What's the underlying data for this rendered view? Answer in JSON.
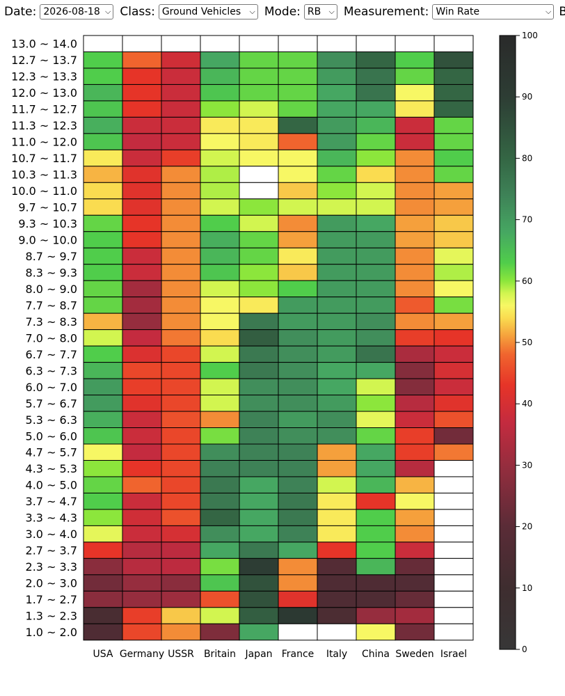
{
  "controls": {
    "date_label": "Date:",
    "date_value": "2026-08-18",
    "class_label": "Class:",
    "class_value": "Ground Vehicles",
    "mode_label": "Mode:",
    "mode_value": "RB",
    "measurement_label": "Measurement:",
    "measurement_value": "Win Rate",
    "br_label": "BR"
  },
  "chart_data": {
    "type": "heatmap",
    "columns": [
      "USA",
      "Germany",
      "USSR",
      "Britain",
      "Japan",
      "France",
      "Italy",
      "China",
      "Sweden",
      "Israel"
    ],
    "rows": [
      "13.0 ~ 14.0",
      "12.7 ~ 13.7",
      "12.3 ~ 13.3",
      "12.0 ~ 13.0",
      "11.7 ~ 12.7",
      "11.3 ~ 12.3",
      "11.0 ~ 12.0",
      "10.7 ~ 11.7",
      "10.3 ~ 11.3",
      "10.0 ~ 11.0",
      "9.7 ~ 10.7",
      "9.3 ~ 10.3",
      "9.0 ~ 10.0",
      "8.7 ~ 9.7",
      "8.3 ~ 9.3",
      "8.0 ~ 9.0",
      "7.7 ~ 8.7",
      "7.3 ~ 8.3",
      "7.0 ~ 8.0",
      "6.7 ~ 7.7",
      "6.3 ~ 7.3",
      "6.0 ~ 7.0",
      "5.7 ~ 6.7",
      "5.3 ~ 6.3",
      "5.0 ~ 6.0",
      "4.7 ~ 5.7",
      "4.3 ~ 5.3",
      "4.0 ~ 5.0",
      "3.7 ~ 4.7",
      "3.3 ~ 4.3",
      "3.0 ~ 4.0",
      "2.7 ~ 3.7",
      "2.3 ~ 3.3",
      "2.0 ~ 3.0",
      "1.7 ~ 2.7",
      "1.3 ~ 2.3",
      "1.0 ~ 2.0"
    ],
    "values": [
      [
        null,
        null,
        null,
        null,
        null,
        null,
        null,
        null,
        null,
        null
      ],
      [
        63,
        48,
        39,
        68,
        62,
        62,
        72,
        80,
        63,
        85
      ],
      [
        63,
        43,
        38,
        66,
        62,
        62,
        70,
        77,
        62,
        80
      ],
      [
        66,
        43,
        38,
        64,
        62,
        62,
        68,
        77,
        56,
        80
      ],
      [
        64,
        43,
        38,
        60,
        58,
        62,
        68,
        68,
        55,
        80
      ],
      [
        67,
        38,
        38,
        55,
        55,
        80,
        70,
        66,
        38,
        62
      ],
      [
        64,
        37,
        38,
        56,
        55,
        48,
        70,
        62,
        38,
        62
      ],
      [
        55,
        38,
        44,
        58,
        56,
        56,
        66,
        60,
        50,
        63
      ],
      [
        52,
        42,
        50,
        59,
        null,
        56,
        62,
        54,
        50,
        62
      ],
      [
        54,
        42,
        50,
        59,
        null,
        53,
        60,
        58,
        50,
        51
      ],
      [
        54,
        42,
        50,
        58,
        60,
        58,
        58,
        58,
        50,
        51
      ],
      [
        62,
        43,
        50,
        63,
        58,
        50,
        70,
        68,
        51,
        53
      ],
      [
        63,
        43,
        50,
        67,
        62,
        51,
        70,
        70,
        51,
        53
      ],
      [
        63,
        38,
        50,
        66,
        62,
        55,
        70,
        70,
        50,
        57
      ],
      [
        63,
        38,
        50,
        64,
        60,
        53,
        70,
        70,
        50,
        59
      ],
      [
        62,
        32,
        50,
        58,
        60,
        63,
        70,
        70,
        50,
        56
      ],
      [
        62,
        32,
        50,
        56,
        55,
        70,
        70,
        70,
        47,
        61
      ],
      [
        52,
        30,
        50,
        56,
        76,
        70,
        70,
        72,
        50,
        51
      ],
      [
        58,
        37,
        49,
        54,
        82,
        72,
        70,
        72,
        44,
        43
      ],
      [
        63,
        41,
        45,
        58,
        76,
        72,
        70,
        77,
        33,
        38
      ],
      [
        66,
        45,
        45,
        63,
        76,
        72,
        68,
        68,
        27,
        40
      ],
      [
        70,
        44,
        45,
        58,
        72,
        72,
        68,
        58,
        27,
        38
      ],
      [
        70,
        42,
        45,
        58,
        72,
        72,
        70,
        60,
        35,
        42
      ],
      [
        67,
        38,
        46,
        50,
        74,
        70,
        72,
        57,
        38,
        46
      ],
      [
        64,
        38,
        45,
        61,
        74,
        72,
        72,
        62,
        44,
        24
      ],
      [
        56,
        37,
        45,
        72,
        74,
        74,
        51,
        68,
        44,
        49
      ],
      [
        60,
        43,
        45,
        74,
        74,
        74,
        51,
        68,
        35,
        null
      ],
      [
        62,
        48,
        45,
        76,
        68,
        74,
        58,
        66,
        52,
        null
      ],
      [
        63,
        38,
        45,
        76,
        68,
        76,
        55,
        43,
        56,
        null
      ],
      [
        60,
        39,
        46,
        80,
        68,
        76,
        55,
        63,
        51,
        null
      ],
      [
        57,
        38,
        40,
        72,
        68,
        74,
        55,
        63,
        50,
        null
      ],
      [
        43,
        35,
        36,
        68,
        76,
        68,
        43,
        63,
        38,
        null
      ],
      [
        28,
        35,
        36,
        61,
        90,
        50,
        18,
        66,
        22,
        null
      ],
      [
        24,
        30,
        28,
        64,
        85,
        50,
        16,
        16,
        17,
        null
      ],
      [
        28,
        30,
        31,
        46,
        85,
        42,
        16,
        16,
        22,
        null
      ],
      [
        14,
        44,
        53,
        58,
        82,
        92,
        15,
        30,
        32,
        null
      ],
      [
        16,
        45,
        50,
        26,
        68,
        null,
        null,
        56,
        24,
        null
      ]
    ],
    "colorbar": {
      "min": 0,
      "max": 100,
      "ticks": [
        0,
        10,
        20,
        30,
        40,
        50,
        60,
        70,
        80,
        90,
        100
      ]
    },
    "color_stops": [
      {
        "v": 0,
        "c": "#373737"
      },
      {
        "v": 10,
        "c": "#3e2d2f"
      },
      {
        "v": 20,
        "c": "#5a2c37"
      },
      {
        "v": 30,
        "c": "#962d3e"
      },
      {
        "v": 37,
        "c": "#c42b3f"
      },
      {
        "v": 43,
        "c": "#e63428"
      },
      {
        "v": 48,
        "c": "#f0642e"
      },
      {
        "v": 51,
        "c": "#f5a03c"
      },
      {
        "v": 54,
        "c": "#fadc50"
      },
      {
        "v": 56,
        "c": "#f7f764"
      },
      {
        "v": 58,
        "c": "#d2f550"
      },
      {
        "v": 60,
        "c": "#8ce63c"
      },
      {
        "v": 63,
        "c": "#50cd4b"
      },
      {
        "v": 68,
        "c": "#46a762"
      },
      {
        "v": 74,
        "c": "#3e8257"
      },
      {
        "v": 80,
        "c": "#346644"
      },
      {
        "v": 90,
        "c": "#2d3d34"
      },
      {
        "v": 100,
        "c": "#2a2a2a"
      }
    ],
    "empty_color": "#ffffff",
    "grid": true,
    "legend": "right colorbar"
  }
}
